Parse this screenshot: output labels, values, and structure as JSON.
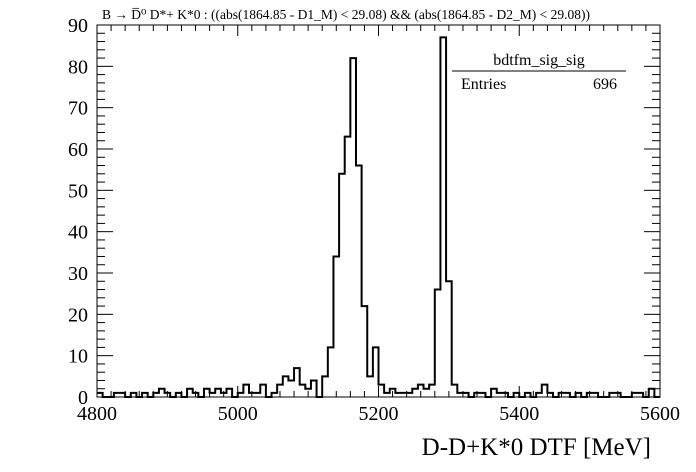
{
  "chart_data": {
    "type": "histogram",
    "title": "B → D̅⁰ D*+ K*0 : ((abs(1864.85 - D1_M) < 29.08) && (abs(1864.85 - D2_M) < 29.08))",
    "xlabel": "D-D+K*0 DTF [MeV]",
    "ylabel": "",
    "xlim": [
      4800,
      5600
    ],
    "ylim": [
      0,
      90
    ],
    "x_ticks": [
      "4800",
      "5000",
      "5200",
      "5400",
      "5600"
    ],
    "y_ticks": [
      "0",
      "10",
      "20",
      "30",
      "40",
      "50",
      "60",
      "70",
      "80",
      "90"
    ],
    "bin_width": 8,
    "bin_start": 4800,
    "values": [
      1,
      0,
      0,
      1,
      1,
      0,
      1,
      0,
      1,
      0,
      1,
      2,
      1,
      0,
      1,
      0,
      2,
      1,
      0,
      2,
      1,
      2,
      1,
      2,
      0,
      1,
      3,
      1,
      1,
      3,
      0,
      1,
      3,
      5,
      4,
      7,
      3,
      2,
      4,
      0,
      5,
      12,
      34,
      54,
      63,
      82,
      56,
      22,
      5,
      12,
      3,
      1,
      2,
      1,
      1,
      1,
      2,
      3,
      2,
      3,
      26,
      87,
      28,
      3,
      1,
      1,
      0,
      1,
      1,
      0,
      2,
      1,
      1,
      0,
      1,
      0,
      1,
      0,
      1,
      3,
      1,
      0,
      1,
      1,
      0,
      1,
      0,
      1,
      1,
      0,
      0,
      1,
      1,
      0,
      0,
      1,
      1,
      0,
      2,
      0
    ],
    "grid": false,
    "stats": {
      "name": "bdtfm_sig_sig",
      "entries_label": "Entries",
      "entries": "696"
    }
  }
}
